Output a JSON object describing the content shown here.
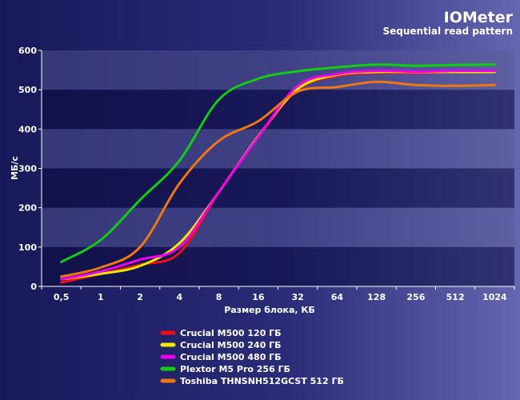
{
  "chart_data": {
    "type": "line",
    "title": "IOMeter",
    "subtitle": "Sequential read pattern",
    "xlabel": "Размер блока, КБ",
    "ylabel": "МБ/с",
    "categories": [
      "0,5",
      "1",
      "2",
      "4",
      "8",
      "16",
      "32",
      "64",
      "128",
      "256",
      "512",
      "1024"
    ],
    "yticks": [
      "0",
      "100",
      "200",
      "300",
      "400",
      "500",
      "600"
    ],
    "ylim": [
      0,
      600
    ],
    "grid": "horizontal bands",
    "legend_position": "bottom",
    "series": [
      {
        "name": "Crucial M500 120 ГБ",
        "color": "#ee1111",
        "values": [
          10,
          32,
          55,
          85,
          240,
          380,
          500,
          535,
          543,
          543,
          545,
          545
        ]
      },
      {
        "name": "Crucial M500 240 ГБ",
        "color": "#f2e800",
        "values": [
          18,
          32,
          52,
          110,
          240,
          382,
          502,
          538,
          545,
          545,
          545,
          545
        ]
      },
      {
        "name": "Crucial M500 480 ГБ",
        "color": "#ee00ee",
        "values": [
          18,
          38,
          68,
          100,
          240,
          380,
          510,
          540,
          548,
          546,
          548,
          548
        ]
      },
      {
        "name": "Plextor M5 Pro 256 ГБ",
        "color": "#11cc11",
        "values": [
          62,
          118,
          220,
          320,
          475,
          528,
          547,
          557,
          564,
          561,
          563,
          564
        ]
      },
      {
        "name": "Toshiba THNSNH512GCST 512 ГБ",
        "color": "#ee7711",
        "values": [
          25,
          48,
          100,
          262,
          370,
          420,
          495,
          507,
          520,
          512,
          510,
          512
        ]
      }
    ]
  }
}
